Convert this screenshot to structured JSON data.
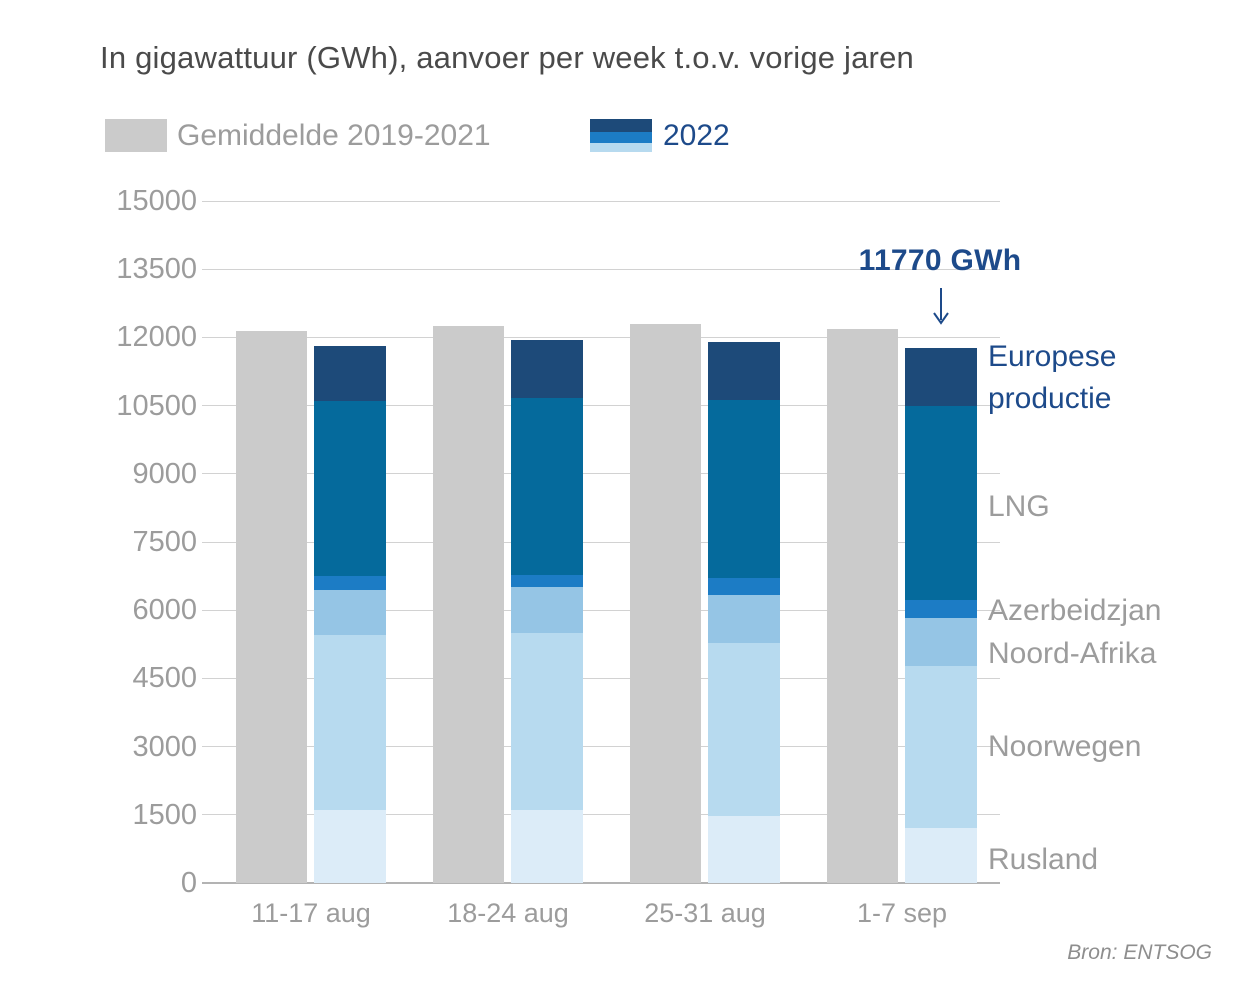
{
  "title": "In gigawattuur (GWh), aanvoer per week t.o.v. vorige jaren",
  "legend": {
    "average_label": "Gemiddelde 2019-2021",
    "year_label": "2022"
  },
  "annotation": {
    "text": "11770 GWh"
  },
  "source": "Bron: ENTSOG",
  "colors": {
    "average": "#cbcbcb",
    "rusland": "#dcecf8",
    "noorwegen": "#b7daef",
    "noord_afrika": "#95c5e5",
    "azerbeidzjan": "#1c7cc5",
    "lng": "#056a9c",
    "europese_productie": "#1d4a79",
    "navy_text": "#1d4a8a",
    "gray_text": "#9c9c9c",
    "title_text": "#4a4a4a",
    "grid": "#d2d2d2"
  },
  "chart_data": {
    "type": "bar",
    "stacked": true,
    "title": "In gigawattuur (GWh), aanvoer per week t.o.v. vorige jaren",
    "ylabel": "GWh",
    "ylim": [
      0,
      15000
    ],
    "yticks": [
      0,
      1500,
      3000,
      4500,
      6000,
      7500,
      9000,
      10500,
      12000,
      13500,
      15000
    ],
    "grid": true,
    "legend_position": "top",
    "categories": [
      "11-17 aug",
      "18-24 aug",
      "25-31 aug",
      "1-7 sep"
    ],
    "average_series": {
      "name": "Gemiddelde 2019-2021",
      "color_key": "average",
      "values": [
        12130,
        12240,
        12290,
        12180
      ]
    },
    "series": [
      {
        "name": "Rusland",
        "color_key": "rusland",
        "values": [
          1610,
          1595,
          1480,
          1210
        ]
      },
      {
        "name": "Noorwegen",
        "color_key": "noorwegen",
        "values": [
          3840,
          3895,
          3800,
          3555
        ]
      },
      {
        "name": "Noord-Afrika",
        "color_key": "noord_afrika",
        "values": [
          985,
          1030,
          1050,
          1065
        ]
      },
      {
        "name": "Azerbeidzjan",
        "color_key": "azerbeidzjan",
        "values": [
          315,
          255,
          370,
          390
        ]
      },
      {
        "name": "LNG",
        "color_key": "lng",
        "values": [
          3845,
          3890,
          3925,
          4280
        ]
      },
      {
        "name": "Europese productie",
        "color_key": "europese_productie",
        "values": [
          1225,
          1285,
          1270,
          1270
        ]
      }
    ],
    "totals_2022": [
      11820,
      11950,
      11895,
      11770
    ],
    "annotated_value": 11770
  },
  "right_labels": [
    {
      "text": "Europese productie",
      "style": "navy"
    },
    {
      "text": "LNG",
      "style": "gray"
    },
    {
      "text": "Azerbeidzjan",
      "style": "gray"
    },
    {
      "text": "Noord-Afrika",
      "style": "gray"
    },
    {
      "text": "Noorwegen",
      "style": "gray"
    },
    {
      "text": "Rusland",
      "style": "gray"
    }
  ]
}
